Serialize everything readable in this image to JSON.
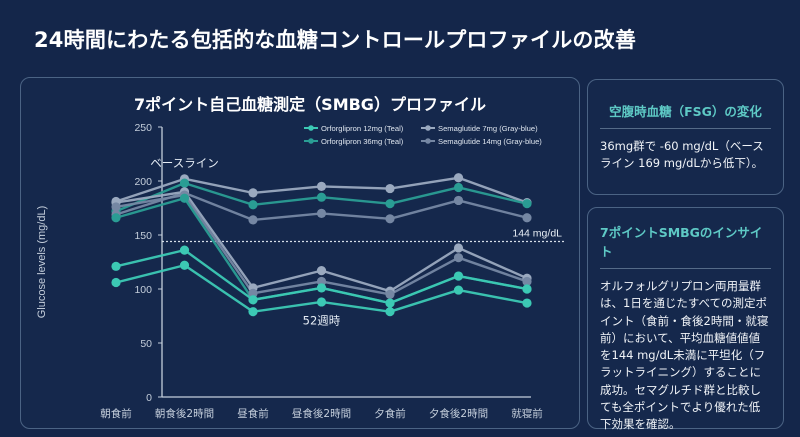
{
  "page": {
    "title": "24時間にわたる包括的な血糖コントロールプロファイルの改善"
  },
  "fsg_card": {
    "title": "空腹時血糖（FSG）の変化",
    "text": "36mg群で -60 mg/dL（ベースライン 169 mg/dLから低下）。"
  },
  "insight_card": {
    "title": "7ポイントSMBGのインサイト",
    "text": "オルフォルグリプロン両用量群は、1日を通じたすべての測定ポイント（食前・食後2時間・就寝前）において、平均血糖値値値を144 mg/dL未満に平坦化（フラットライニング）することに成功。セマグルチド群と比較しても全ポイントでより優れた低下効果を確認。"
  },
  "colors": {
    "background": "#14264a",
    "teal": "#3cc9b4",
    "teal_dark": "#2a9d94",
    "gray_blue_light": "#9aa9bf",
    "gray_blue": "#7587a3",
    "axis": "#c4cedb",
    "accent_title": "#5ec9c5"
  },
  "chart_data": {
    "type": "line",
    "title": "7ポイント自己血糖測定（SMBG）プロファイル",
    "xlabel": "",
    "ylabel": "Glucose levels (mg/dL)",
    "ylim": [
      0,
      250
    ],
    "yticks": [
      0,
      50,
      100,
      150,
      200,
      250
    ],
    "grid": false,
    "legend_position": "top-right",
    "categories": [
      "朝食前",
      "朝食後2時間",
      "昼食前",
      "昼食後2時間",
      "夕食前",
      "夕食後2時間",
      "就寝前"
    ],
    "reference_line": {
      "value": 144,
      "label": "144 mg/dL",
      "style": "dotted"
    },
    "annotations": [
      {
        "text": "ベースライン",
        "category_index": 1,
        "value": 213
      },
      {
        "text": "52週時",
        "category_index": 3,
        "value": 67
      }
    ],
    "legend": [
      {
        "name": "Orforglipron 12mg (Teal)",
        "color": "#3cc9b4"
      },
      {
        "name": "Orforglipron 36mg (Teal)",
        "color": "#2a9d94"
      },
      {
        "name": "Semaglutide 7mg (Gray-blue)",
        "color": "#9aa9bf"
      },
      {
        "name": "Semaglutide 14mg (Gray-blue)",
        "color": "#7587a3"
      }
    ],
    "series": [
      {
        "name": "Semaglutide 7mg baseline",
        "group": "baseline",
        "color": "#9aa9bf",
        "values": [
          181,
          202,
          189,
          195,
          193,
          203,
          180
        ]
      },
      {
        "name": "Orforglipron 36mg baseline",
        "group": "baseline",
        "color": "#2a9d94",
        "values": [
          172,
          198,
          178,
          185,
          179,
          194,
          179
        ]
      },
      {
        "name": "Semaglutide 14mg baseline",
        "group": "baseline",
        "color": "#7587a3",
        "values": [
          169,
          189,
          164,
          170,
          165,
          182,
          166
        ]
      },
      {
        "name": "Semaglutide 7mg",
        "group": "week52",
        "color": "#9aa9bf",
        "values": [
          180,
          190,
          101,
          117,
          98,
          138,
          110
        ]
      },
      {
        "name": "Semaglutide 14mg",
        "group": "week52",
        "color": "#7587a3",
        "values": [
          176,
          187,
          96,
          107,
          95,
          129,
          107
        ]
      },
      {
        "name": "Orforglipron 12mg (baseline start)",
        "group": "week52",
        "color": "#2a9d94",
        "values": [
          166,
          184,
          90,
          101,
          87,
          112,
          100
        ]
      },
      {
        "name": "Orforglipron 12mg",
        "group": "week52",
        "color": "#3cc9b4",
        "values": [
          121,
          136,
          90,
          101,
          87,
          112,
          100
        ]
      },
      {
        "name": "Orforglipron 36mg",
        "group": "week52",
        "color": "#3cc9b4",
        "values": [
          106,
          122,
          79,
          88,
          79,
          99,
          87
        ]
      }
    ]
  }
}
